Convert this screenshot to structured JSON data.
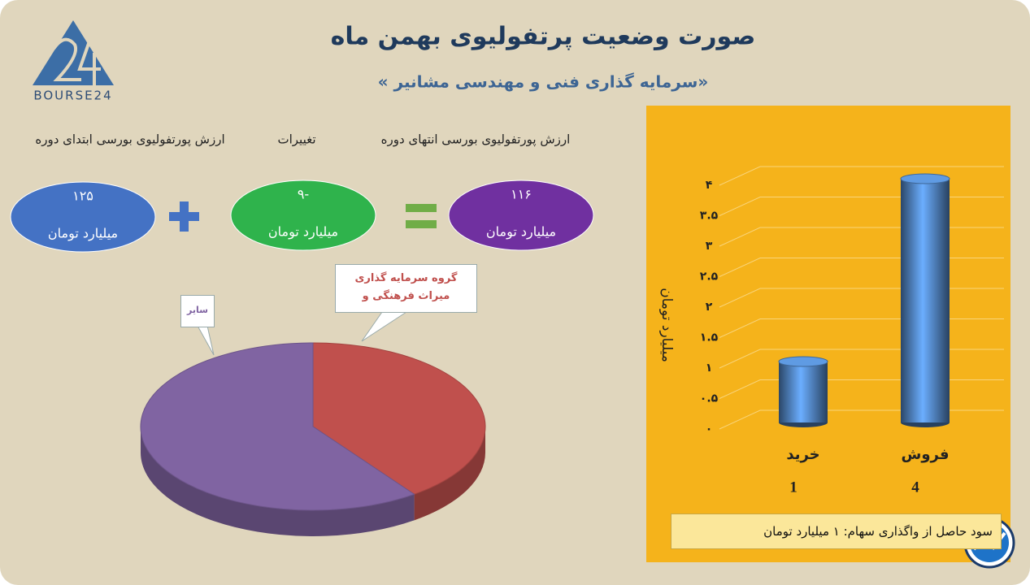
{
  "header": {
    "title": "صورت وضعیت پرتفولیوی بهمن ماه",
    "subtitle": "«سرمایه گذاری فنی و مهندسی مشانیر »",
    "logo": "BOURSE24"
  },
  "summary": {
    "unit": "میلیارد تومان",
    "items": [
      {
        "label": "ارزش پورتفولیوی بورسی ابتدای دوره",
        "amount": "۱۲۵",
        "color": "#4472c4"
      },
      {
        "label": "تغییرات",
        "amount": "-۹",
        "color": "#2fb34c"
      },
      {
        "label": "ارزش پورتفولیوی بورسی انتهای دوره",
        "amount": "۱۱۶",
        "color": "#7030a0"
      }
    ]
  },
  "chart_data": [
    {
      "type": "pie",
      "categories": [
        "گروه سرمایه گذاری میراث فرهنگی و",
        "سایر"
      ],
      "values": [
        40,
        60
      ],
      "colors": [
        "#c0504d",
        "#8064a2"
      ]
    },
    {
      "type": "bar",
      "categories": [
        "خرید",
        "فروش"
      ],
      "values": [
        1,
        4
      ],
      "color": "#4f81bd",
      "y_label": "میلیارد تومان",
      "ylim": [
        0,
        4
      ],
      "yticks": [
        {
          "value": 0,
          "label": "۰"
        },
        {
          "value": 0.5,
          "label": "۰.۵"
        },
        {
          "value": 1,
          "label": "۱"
        },
        {
          "value": 1.5,
          "label": "۱.۵"
        },
        {
          "value": 2,
          "label": "۲"
        },
        {
          "value": 2.5,
          "label": "۲.۵"
        },
        {
          "value": 3,
          "label": "۳"
        },
        {
          "value": 3.5,
          "label": "۳.۵"
        },
        {
          "value": 4,
          "label": "۴"
        }
      ],
      "grid": true,
      "note": "سود حاصل از واگذاری سهام: ۱ میلیارد تومان"
    }
  ]
}
